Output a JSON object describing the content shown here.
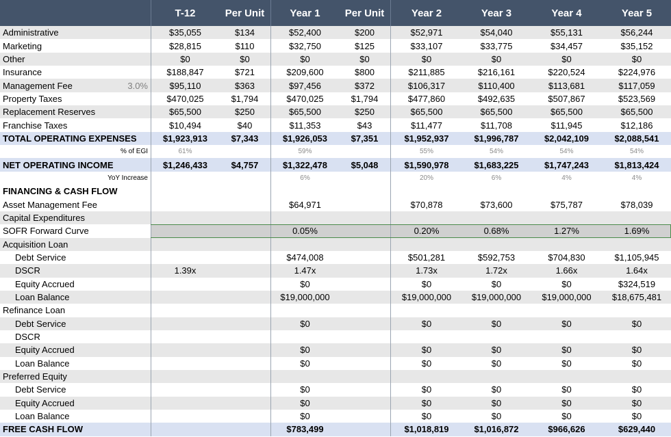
{
  "columns": [
    "T-12",
    "Per Unit",
    "Year 1",
    "Per Unit",
    "Year 2",
    "Year 3",
    "Year 4",
    "Year 5"
  ],
  "rows": [
    {
      "label": "Administrative",
      "side": "",
      "style": "alt",
      "indent": false,
      "values": [
        "$35,055",
        "$134",
        "$52,400",
        "$200",
        "$52,971",
        "$54,040",
        "$55,131",
        "$56,244"
      ]
    },
    {
      "label": "Marketing",
      "side": "",
      "style": "",
      "indent": false,
      "values": [
        "$28,815",
        "$110",
        "$32,750",
        "$125",
        "$33,107",
        "$33,775",
        "$34,457",
        "$35,152"
      ]
    },
    {
      "label": "Other",
      "side": "",
      "style": "alt",
      "indent": false,
      "values": [
        "$0",
        "$0",
        "$0",
        "$0",
        "$0",
        "$0",
        "$0",
        "$0"
      ]
    },
    {
      "label": "Insurance",
      "side": "",
      "style": "",
      "indent": false,
      "values": [
        "$188,847",
        "$721",
        "$209,600",
        "$800",
        "$211,885",
        "$216,161",
        "$220,524",
        "$224,976"
      ]
    },
    {
      "label": "Management Fee",
      "side": "3.0%",
      "style": "alt",
      "indent": false,
      "values": [
        "$95,110",
        "$363",
        "$97,456",
        "$372",
        "$106,317",
        "$110,400",
        "$113,681",
        "$117,059"
      ]
    },
    {
      "label": "Property Taxes",
      "side": "",
      "style": "",
      "indent": false,
      "values": [
        "$470,025",
        "$1,794",
        "$470,025",
        "$1,794",
        "$477,860",
        "$492,635",
        "$507,867",
        "$523,569"
      ]
    },
    {
      "label": "Replacement Reserves",
      "side": "",
      "style": "alt",
      "indent": false,
      "values": [
        "$65,500",
        "$250",
        "$65,500",
        "$250",
        "$65,500",
        "$65,500",
        "$65,500",
        "$65,500"
      ]
    },
    {
      "label": "Franchise Taxes",
      "side": "",
      "style": "",
      "indent": false,
      "values": [
        "$10,494",
        "$40",
        "$11,353",
        "$43",
        "$11,477",
        "$11,708",
        "$11,945",
        "$12,186"
      ]
    },
    {
      "label": "TOTAL OPERATING EXPENSES",
      "side": "",
      "style": "hl",
      "indent": false,
      "values": [
        "$1,923,913",
        "$7,343",
        "$1,926,053",
        "$7,351",
        "$1,952,937",
        "$1,996,787",
        "$2,042,109",
        "$2,088,541"
      ]
    },
    {
      "label": "% of EGI",
      "side": "",
      "style": "note",
      "indent": false,
      "right": true,
      "values": [
        "61%",
        "",
        "59%",
        "",
        "55%",
        "54%",
        "54%",
        "54%"
      ]
    },
    {
      "label": "NET OPERATING INCOME",
      "side": "",
      "style": "hl",
      "indent": false,
      "values": [
        "$1,246,433",
        "$4,757",
        "$1,322,478",
        "$5,048",
        "$1,590,978",
        "$1,683,225",
        "$1,747,243",
        "$1,813,424"
      ]
    },
    {
      "label": "YoY Increase",
      "side": "",
      "style": "note",
      "indent": false,
      "right": true,
      "values": [
        "",
        "",
        "6%",
        "",
        "20%",
        "6%",
        "4%",
        "4%"
      ]
    },
    {
      "label": "FINANCING & CASH FLOW",
      "side": "",
      "style": "section",
      "indent": false,
      "values": [
        "",
        "",
        "",
        "",
        "",
        "",
        "",
        ""
      ]
    },
    {
      "label": "Asset Management Fee",
      "side": "",
      "style": "",
      "indent": false,
      "values": [
        "",
        "",
        "$64,971",
        "",
        "$70,878",
        "$73,600",
        "$75,787",
        "$78,039"
      ]
    },
    {
      "label": "Capital Expenditures",
      "side": "",
      "style": "alt",
      "indent": false,
      "values": [
        "",
        "",
        "",
        "",
        "",
        "",
        "",
        ""
      ]
    },
    {
      "label": "SOFR Forward Curve",
      "side": "",
      "style": "sofr",
      "indent": false,
      "values": [
        "",
        "",
        "0.05%",
        "",
        "0.20%",
        "0.68%",
        "1.27%",
        "1.69%"
      ]
    },
    {
      "label": "Acquisition Loan",
      "side": "",
      "style": "alt",
      "indent": false,
      "values": [
        "",
        "",
        "",
        "",
        "",
        "",
        "",
        ""
      ]
    },
    {
      "label": "Debt Service",
      "side": "",
      "style": "",
      "indent": true,
      "values": [
        "",
        "",
        "$474,008",
        "",
        "$501,281",
        "$592,753",
        "$704,830",
        "$1,105,945"
      ]
    },
    {
      "label": "DSCR",
      "side": "",
      "style": "alt",
      "indent": true,
      "values": [
        "1.39x",
        "",
        "1.47x",
        "",
        "1.73x",
        "1.72x",
        "1.66x",
        "1.64x"
      ]
    },
    {
      "label": "Equity Accrued",
      "side": "",
      "style": "",
      "indent": true,
      "values": [
        "",
        "",
        "$0",
        "",
        "$0",
        "$0",
        "$0",
        "$324,519"
      ]
    },
    {
      "label": "Loan Balance",
      "side": "",
      "style": "alt",
      "indent": true,
      "values": [
        "",
        "",
        "$19,000,000",
        "",
        "$19,000,000",
        "$19,000,000",
        "$19,000,000",
        "$18,675,481"
      ]
    },
    {
      "label": "Refinance Loan",
      "side": "",
      "style": "",
      "indent": false,
      "values": [
        "",
        "",
        "",
        "",
        "",
        "",
        "",
        ""
      ]
    },
    {
      "label": "Debt Service",
      "side": "",
      "style": "alt",
      "indent": true,
      "values": [
        "",
        "",
        "$0",
        "",
        "$0",
        "$0",
        "$0",
        "$0"
      ]
    },
    {
      "label": "DSCR",
      "side": "",
      "style": "",
      "indent": true,
      "values": [
        "",
        "",
        "",
        "",
        "",
        "",
        "",
        ""
      ]
    },
    {
      "label": "Equity Accrued",
      "side": "",
      "style": "alt",
      "indent": true,
      "values": [
        "",
        "",
        "$0",
        "",
        "$0",
        "$0",
        "$0",
        "$0"
      ]
    },
    {
      "label": "Loan Balance",
      "side": "",
      "style": "",
      "indent": true,
      "values": [
        "",
        "",
        "$0",
        "",
        "$0",
        "$0",
        "$0",
        "$0"
      ]
    },
    {
      "label": "Preferred Equity",
      "side": "",
      "style": "alt",
      "indent": false,
      "values": [
        "",
        "",
        "",
        "",
        "",
        "",
        "",
        ""
      ]
    },
    {
      "label": "Debt Service",
      "side": "",
      "style": "",
      "indent": true,
      "values": [
        "",
        "",
        "$0",
        "",
        "$0",
        "$0",
        "$0",
        "$0"
      ]
    },
    {
      "label": "Equity Accrued",
      "side": "",
      "style": "alt",
      "indent": true,
      "values": [
        "",
        "",
        "$0",
        "",
        "$0",
        "$0",
        "$0",
        "$0"
      ]
    },
    {
      "label": "Loan Balance",
      "side": "",
      "style": "",
      "indent": true,
      "values": [
        "",
        "",
        "$0",
        "",
        "$0",
        "$0",
        "$0",
        "$0"
      ]
    },
    {
      "label": "FREE CASH FLOW",
      "side": "",
      "style": "hl",
      "indent": false,
      "values": [
        "",
        "",
        "$783,499",
        "",
        "$1,018,819",
        "$1,016,872",
        "$966,626",
        "$629,440"
      ]
    }
  ]
}
